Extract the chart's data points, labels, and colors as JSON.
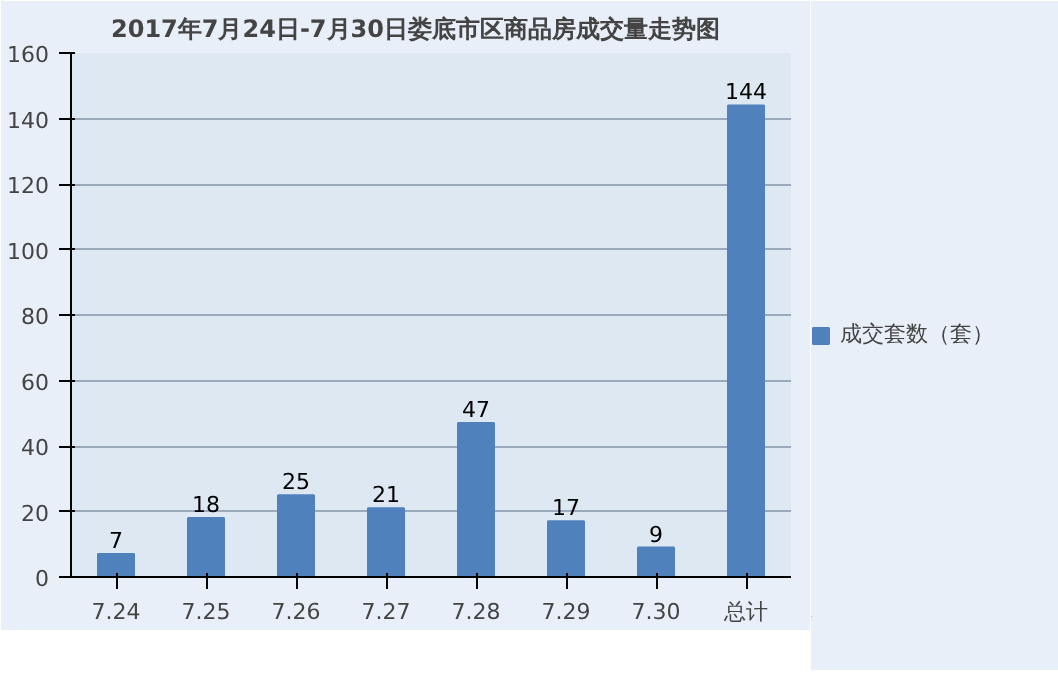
{
  "chart_data": {
    "type": "bar",
    "title": "2017年7月24日-7月30日娄底市区商品房成交量走势图",
    "categories": [
      "7.24",
      "7.25",
      "7.26",
      "7.27",
      "7.28",
      "7.29",
      "7.30",
      "总计"
    ],
    "series": [
      {
        "name": "成交套数（套）",
        "color": "#4f81bd",
        "values": [
          7,
          18,
          25,
          21,
          47,
          17,
          9,
          144
        ]
      }
    ],
    "ylim": [
      0,
      160
    ],
    "yticks": [
      0,
      20,
      40,
      60,
      80,
      100,
      120,
      140,
      160
    ],
    "grid": "y",
    "legend": "right",
    "data_labels": true
  }
}
